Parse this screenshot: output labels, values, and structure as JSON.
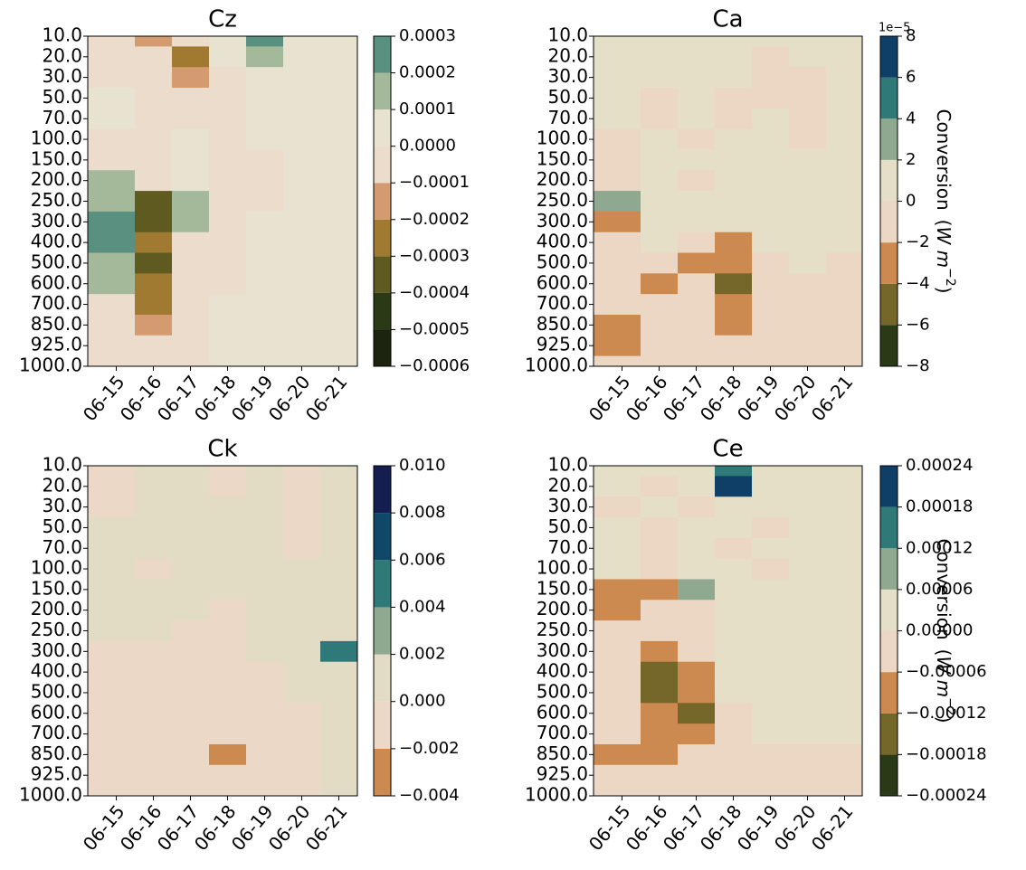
{
  "chart_data": [
    {
      "type": "contour",
      "title": "Cz",
      "x": [
        "06-15",
        "06-16",
        "06-17",
        "06-18",
        "06-19",
        "06-20",
        "06-21"
      ],
      "y": [
        "10.0",
        "20.0",
        "30.0",
        "50.0",
        "70.0",
        "100.0",
        "150.0",
        "200.0",
        "250.0",
        "300.0",
        "400.0",
        "500.0",
        "600.0",
        "700.0",
        "850.0",
        "925.0",
        "1000.0"
      ],
      "z": [
        [
          -5e-05,
          -0.00015,
          -5e-05,
          5e-05,
          0.00025,
          5e-05,
          5e-05
        ],
        [
          -5e-05,
          -5e-05,
          -0.00025,
          5e-05,
          0.00015,
          5e-05,
          5e-05
        ],
        [
          -5e-05,
          -5e-05,
          -0.00015,
          -5e-05,
          5e-05,
          5e-05,
          5e-05
        ],
        [
          5e-05,
          -5e-05,
          -5e-05,
          -5e-05,
          5e-05,
          5e-05,
          5e-05
        ],
        [
          5e-05,
          -5e-05,
          -5e-05,
          -5e-05,
          5e-05,
          5e-05,
          5e-05
        ],
        [
          -5e-05,
          -5e-05,
          5e-05,
          -5e-05,
          5e-05,
          5e-05,
          5e-05
        ],
        [
          -5e-05,
          -5e-05,
          5e-05,
          -5e-05,
          -5e-05,
          5e-05,
          5e-05
        ],
        [
          0.00015,
          -5e-05,
          5e-05,
          -5e-05,
          -5e-05,
          5e-05,
          5e-05
        ],
        [
          0.00015,
          -0.00035,
          0.00015,
          -5e-05,
          -5e-05,
          5e-05,
          5e-05
        ],
        [
          0.00025,
          -0.00035,
          0.00015,
          -5e-05,
          5e-05,
          5e-05,
          5e-05
        ],
        [
          0.00025,
          -0.00025,
          -5e-05,
          -5e-05,
          5e-05,
          5e-05,
          5e-05
        ],
        [
          0.00015,
          -0.00035,
          -5e-05,
          -5e-05,
          5e-05,
          5e-05,
          5e-05
        ],
        [
          0.00015,
          -0.00025,
          -5e-05,
          -5e-05,
          5e-05,
          5e-05,
          5e-05
        ],
        [
          -5e-05,
          -0.00025,
          -5e-05,
          5e-05,
          5e-05,
          5e-05,
          5e-05
        ],
        [
          -5e-05,
          -0.00015,
          -5e-05,
          5e-05,
          5e-05,
          5e-05,
          5e-05
        ],
        [
          -5e-05,
          -5e-05,
          -5e-05,
          5e-05,
          5e-05,
          5e-05,
          5e-05
        ],
        [
          -5e-05,
          -5e-05,
          -5e-05,
          5e-05,
          5e-05,
          5e-05,
          5e-05
        ]
      ],
      "cticks": [
        {
          "value": -0.0006,
          "label": "−0.0006"
        },
        {
          "value": -0.0005,
          "label": "−0.0005"
        },
        {
          "value": -0.0004,
          "label": "−0.0004"
        },
        {
          "value": -0.0003,
          "label": "−0.0003"
        },
        {
          "value": -0.0002,
          "label": "−0.0002"
        },
        {
          "value": -0.0001,
          "label": "−0.0001"
        },
        {
          "value": 0,
          "label": "0.0000"
        },
        0.0001,
        0.0002,
        0.0003
      ],
      "colors": [
        "#1c2410",
        "#2b3a16",
        "#5e5a20",
        "#a07a30",
        "#d49a70",
        "#ecdccc",
        "#e8e2d0",
        "#a4b89a",
        "#5a9080"
      ]
    },
    {
      "type": "contour",
      "title": "Ca",
      "x": [
        "06-15",
        "06-16",
        "06-17",
        "06-18",
        "06-19",
        "06-20",
        "06-21"
      ],
      "y": [
        "10.0",
        "20.0",
        "30.0",
        "50.0",
        "70.0",
        "100.0",
        "150.0",
        "200.0",
        "250.0",
        "300.0",
        "400.0",
        "500.0",
        "600.0",
        "700.0",
        "850.0",
        "925.0",
        "1000.0"
      ],
      "z": [
        [
          1,
          1,
          1,
          1,
          1,
          1,
          1
        ],
        [
          1,
          1,
          1,
          1,
          -1,
          1,
          1
        ],
        [
          1,
          1,
          1,
          1,
          -1,
          -1,
          1
        ],
        [
          1,
          -1,
          1,
          -1,
          -1,
          -1,
          1
        ],
        [
          1,
          -1,
          1,
          -1,
          1,
          -1,
          1
        ],
        [
          -1,
          1,
          -1,
          1,
          1,
          -1,
          1
        ],
        [
          -1,
          1,
          1,
          1,
          1,
          1,
          1
        ],
        [
          -1,
          1,
          -1,
          1,
          1,
          1,
          1
        ],
        [
          3,
          1,
          1,
          1,
          1,
          1,
          1
        ],
        [
          -3,
          1,
          1,
          1,
          1,
          1,
          1
        ],
        [
          -1,
          1,
          -1,
          -3,
          1,
          1,
          1
        ],
        [
          -1,
          -1,
          -3,
          -3,
          -1,
          1,
          -1
        ],
        [
          -1,
          -3,
          -1,
          -5,
          -1,
          -1,
          -1
        ],
        [
          -1,
          -1,
          -1,
          -3,
          -1,
          -1,
          -1
        ],
        [
          -3,
          -1,
          -1,
          -3,
          -1,
          -1,
          -1
        ],
        [
          -3,
          -1,
          -1,
          -1,
          -1,
          -1,
          -1
        ],
        [
          -1,
          -1,
          -1,
          -1,
          -1,
          -1,
          -1
        ]
      ],
      "cticks": [
        {
          "value": -8,
          "label": "−8"
        },
        {
          "value": -6,
          "label": "−6"
        },
        {
          "value": -4,
          "label": "−4"
        },
        {
          "value": -2,
          "label": "−2"
        },
        0,
        2,
        4,
        6,
        8
      ],
      "offset": "1e−5",
      "colors": [
        "#2b3a16",
        "#75662a",
        "#cd8a50",
        "#ecd6c4",
        "#e6dfc8",
        "#8fa890",
        "#2f7a78",
        "#0f3f66"
      ],
      "colorbar_label": {
        "text": "Conversion",
        "unit": "W m",
        "exponent": "−2"
      }
    },
    {
      "type": "contour",
      "title": "Ck",
      "x": [
        "06-15",
        "06-16",
        "06-17",
        "06-18",
        "06-19",
        "06-20",
        "06-21"
      ],
      "y": [
        "10.0",
        "20.0",
        "30.0",
        "50.0",
        "70.0",
        "100.0",
        "150.0",
        "200.0",
        "250.0",
        "300.0",
        "400.0",
        "500.0",
        "600.0",
        "700.0",
        "850.0",
        "925.0",
        "1000.0"
      ],
      "z": [
        [
          -0.001,
          0.001,
          0.001,
          -0.001,
          0.001,
          -0.001,
          0.001
        ],
        [
          -0.001,
          0.001,
          0.001,
          -0.001,
          0.001,
          -0.001,
          0.001
        ],
        [
          -0.001,
          0.001,
          0.001,
          0.001,
          0.001,
          -0.001,
          0.001
        ],
        [
          0.001,
          0.001,
          0.001,
          0.001,
          0.001,
          -0.001,
          0.001
        ],
        [
          0.001,
          0.001,
          0.001,
          0.001,
          0.001,
          -0.001,
          0.001
        ],
        [
          0.001,
          -0.001,
          0.001,
          0.001,
          0.001,
          0.001,
          0.001
        ],
        [
          0.001,
          0.001,
          0.001,
          0.001,
          0.001,
          0.001,
          0.001
        ],
        [
          0.001,
          0.001,
          0.001,
          -0.001,
          0.001,
          0.001,
          0.001
        ],
        [
          0.001,
          0.001,
          -0.001,
          -0.001,
          0.001,
          0.001,
          0.001
        ],
        [
          -0.001,
          -0.001,
          -0.001,
          -0.001,
          0.001,
          0.001,
          0.005
        ],
        [
          -0.001,
          -0.001,
          -0.001,
          -0.001,
          -0.001,
          0.001,
          0.001
        ],
        [
          -0.001,
          -0.001,
          -0.001,
          -0.001,
          -0.001,
          0.001,
          0.001
        ],
        [
          -0.001,
          -0.001,
          -0.001,
          -0.001,
          -0.001,
          -0.001,
          0.001
        ],
        [
          -0.001,
          -0.001,
          -0.001,
          -0.001,
          -0.001,
          -0.001,
          0.001
        ],
        [
          -0.001,
          -0.001,
          -0.001,
          -0.003,
          -0.001,
          -0.001,
          0.001
        ],
        [
          -0.001,
          -0.001,
          -0.001,
          -0.001,
          -0.001,
          -0.001,
          0.001
        ],
        [
          -0.001,
          -0.001,
          -0.001,
          -0.001,
          -0.001,
          -0.001,
          0.001
        ]
      ],
      "cticks": [
        {
          "value": -0.004,
          "label": "−0.004"
        },
        {
          "value": -0.002,
          "label": "−0.002"
        },
        {
          "value": 0,
          "label": "0.000"
        },
        0.002,
        0.004,
        0.006,
        0.008,
        {
          "value": 0.01,
          "label": "0.010"
        }
      ],
      "colors": [
        "#cd8a50",
        "#ecd8c6",
        "#e2dcc4",
        "#8fa890",
        "#2f7a78",
        "#0f4868",
        "#141e50"
      ]
    },
    {
      "type": "contour",
      "title": "Ce",
      "x": [
        "06-15",
        "06-16",
        "06-17",
        "06-18",
        "06-19",
        "06-20",
        "06-21"
      ],
      "y": [
        "10.0",
        "20.0",
        "30.0",
        "50.0",
        "70.0",
        "100.0",
        "150.0",
        "200.0",
        "250.0",
        "300.0",
        "400.0",
        "500.0",
        "600.0",
        "700.0",
        "850.0",
        "925.0",
        "1000.0"
      ],
      "z": [
        [
          3e-05,
          3e-05,
          3e-05,
          0.00015,
          3e-05,
          3e-05,
          3e-05
        ],
        [
          3e-05,
          -3e-05,
          3e-05,
          0.00021,
          3e-05,
          3e-05,
          3e-05
        ],
        [
          -3e-05,
          3e-05,
          -3e-05,
          3e-05,
          3e-05,
          3e-05,
          3e-05
        ],
        [
          3e-05,
          -3e-05,
          3e-05,
          3e-05,
          -3e-05,
          3e-05,
          3e-05
        ],
        [
          3e-05,
          -3e-05,
          3e-05,
          -3e-05,
          3e-05,
          3e-05,
          3e-05
        ],
        [
          3e-05,
          -3e-05,
          3e-05,
          3e-05,
          -3e-05,
          3e-05,
          3e-05
        ],
        [
          -9e-05,
          -9e-05,
          9e-05,
          3e-05,
          3e-05,
          3e-05,
          3e-05
        ],
        [
          -9e-05,
          -3e-05,
          -3e-05,
          3e-05,
          3e-05,
          3e-05,
          3e-05
        ],
        [
          -3e-05,
          -3e-05,
          -3e-05,
          3e-05,
          3e-05,
          3e-05,
          3e-05
        ],
        [
          -3e-05,
          -9e-05,
          -3e-05,
          3e-05,
          3e-05,
          3e-05,
          3e-05
        ],
        [
          -3e-05,
          -0.00015,
          -9e-05,
          3e-05,
          3e-05,
          3e-05,
          3e-05
        ],
        [
          -3e-05,
          -0.00015,
          -9e-05,
          3e-05,
          3e-05,
          3e-05,
          3e-05
        ],
        [
          -3e-05,
          -9e-05,
          -0.00015,
          -3e-05,
          3e-05,
          3e-05,
          3e-05
        ],
        [
          -3e-05,
          -9e-05,
          -9e-05,
          -3e-05,
          3e-05,
          3e-05,
          3e-05
        ],
        [
          -9e-05,
          -9e-05,
          -3e-05,
          -3e-05,
          -3e-05,
          -3e-05,
          -3e-05
        ],
        [
          -3e-05,
          -3e-05,
          -3e-05,
          -3e-05,
          -3e-05,
          -3e-05,
          -3e-05
        ],
        [
          -3e-05,
          -3e-05,
          -3e-05,
          -3e-05,
          -3e-05,
          -3e-05,
          -3e-05
        ]
      ],
      "cticks": [
        {
          "value": -0.00024,
          "label": "−0.00024"
        },
        {
          "value": -0.00018,
          "label": "−0.00018"
        },
        {
          "value": -0.00012,
          "label": "−0.00012"
        },
        {
          "value": -6e-05,
          "label": "−0.00006"
        },
        {
          "value": 0,
          "label": "0.00000"
        },
        6e-05,
        0.00012,
        0.00018,
        0.00024
      ],
      "colors": [
        "#2b3a16",
        "#75662a",
        "#cd8a50",
        "#ecd6c4",
        "#e6dfc8",
        "#8fa890",
        "#2f7a78",
        "#0f3f66"
      ],
      "colorbar_label": {
        "text": "Conversion",
        "unit": "W m",
        "exponent": "−2"
      }
    }
  ]
}
